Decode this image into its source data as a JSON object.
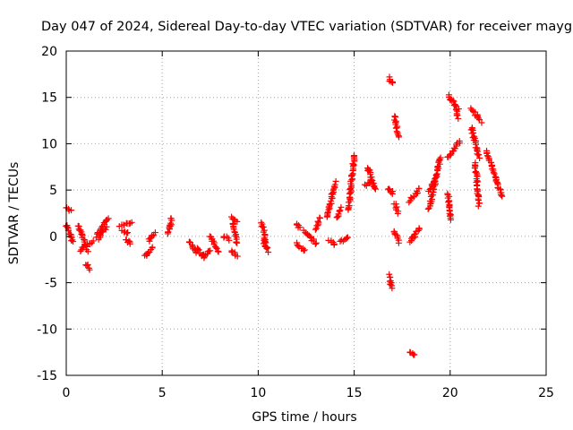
{
  "chart_data": {
    "type": "scatter",
    "title": "Day 047 of 2024, Sidereal Day-to-day VTEC variation (SDTVAR) for receiver mayg",
    "xlabel": "GPS time / hours",
    "ylabel": "SDTVAR / TECUs",
    "xlim": [
      0,
      25
    ],
    "ylim": [
      -15,
      20
    ],
    "xticks": [
      0,
      5,
      10,
      15,
      20,
      25
    ],
    "yticks": [
      -15,
      -10,
      -5,
      0,
      5,
      10,
      15,
      20
    ],
    "grid": true,
    "marker": "+",
    "series": [
      {
        "name": "SDTVAR",
        "color": "#ff0000",
        "segments": [
          {
            "x0": 0.0,
            "x1": 0.25,
            "y0": 3.1,
            "y1": 2.8
          },
          {
            "x0": 0.0,
            "x1": 0.35,
            "y0": 1.2,
            "y1": -0.6
          },
          {
            "x0": 0.65,
            "x1": 1.1,
            "y0": 1.2,
            "y1": -1.5
          },
          {
            "x0": 0.7,
            "x1": 1.4,
            "y0": -1.5,
            "y1": -0.5
          },
          {
            "x0": 1.05,
            "x1": 1.2,
            "y0": -3.0,
            "y1": -3.5
          },
          {
            "x0": 1.6,
            "x1": 2.2,
            "y0": 0.0,
            "y1": 2.0
          },
          {
            "x0": 1.7,
            "x1": 2.1,
            "y0": -0.2,
            "y1": 1.0
          },
          {
            "x0": 2.8,
            "x1": 3.4,
            "y0": 1.2,
            "y1": 1.6
          },
          {
            "x0": 2.9,
            "x1": 3.2,
            "y0": 0.5,
            "y1": 0.4
          },
          {
            "x0": 3.1,
            "x1": 3.35,
            "y0": -0.3,
            "y1": -0.8
          },
          {
            "x0": 4.1,
            "x1": 4.5,
            "y0": -2.2,
            "y1": -1.2
          },
          {
            "x0": 4.3,
            "x1": 4.6,
            "y0": -0.5,
            "y1": 0.3
          },
          {
            "x0": 5.3,
            "x1": 5.5,
            "y0": 0.2,
            "y1": 2.0
          },
          {
            "x0": 6.4,
            "x1": 6.8,
            "y0": -0.5,
            "y1": -1.8
          },
          {
            "x0": 6.8,
            "x1": 7.2,
            "y0": -1.2,
            "y1": -2.4
          },
          {
            "x0": 7.2,
            "x1": 7.5,
            "y0": -2.0,
            "y1": -1.6
          },
          {
            "x0": 7.5,
            "x1": 7.9,
            "y0": 0.0,
            "y1": -1.6
          },
          {
            "x0": 8.2,
            "x1": 8.5,
            "y0": 0.0,
            "y1": -0.3
          },
          {
            "x0": 8.6,
            "x1": 8.9,
            "y0": 2.0,
            "y1": 1.6
          },
          {
            "x0": 8.7,
            "x1": 8.9,
            "y0": 1.5,
            "y1": -0.8
          },
          {
            "x0": 8.6,
            "x1": 8.9,
            "y0": -1.5,
            "y1": -2.2
          },
          {
            "x0": 10.2,
            "x1": 10.4,
            "y0": 1.5,
            "y1": -0.8
          },
          {
            "x0": 10.3,
            "x1": 10.5,
            "y0": -0.5,
            "y1": -1.6
          },
          {
            "x0": 12.0,
            "x1": 12.2,
            "y0": 1.2,
            "y1": 1.0
          },
          {
            "x0": 12.0,
            "x1": 12.4,
            "y0": -0.8,
            "y1": -1.6
          },
          {
            "x0": 12.4,
            "x1": 13.0,
            "y0": 0.6,
            "y1": -0.8
          },
          {
            "x0": 13.0,
            "x1": 13.2,
            "y0": 0.8,
            "y1": 2.0
          },
          {
            "x0": 13.6,
            "x1": 14.0,
            "y0": 2.0,
            "y1": 5.8
          },
          {
            "x0": 13.7,
            "x1": 14.0,
            "y0": -0.4,
            "y1": -0.9
          },
          {
            "x0": 14.1,
            "x1": 14.3,
            "y0": 2.0,
            "y1": 3.0
          },
          {
            "x0": 14.3,
            "x1": 14.7,
            "y0": -0.5,
            "y1": -0.2
          },
          {
            "x0": 14.7,
            "x1": 15.0,
            "y0": 2.8,
            "y1": 8.7
          },
          {
            "x0": 15.7,
            "x1": 16.1,
            "y0": 7.5,
            "y1": 5.0
          },
          {
            "x0": 15.6,
            "x1": 15.9,
            "y0": 5.5,
            "y1": 6.0
          },
          {
            "x0": 16.8,
            "x1": 17.0,
            "y0": 17.1,
            "y1": 16.5
          },
          {
            "x0": 16.8,
            "x1": 17.0,
            "y0": 5.2,
            "y1": 4.6
          },
          {
            "x0": 16.85,
            "x1": 16.95,
            "y0": -4.2,
            "y1": -5.6
          },
          {
            "x0": 17.1,
            "x1": 17.3,
            "y0": 13.0,
            "y1": 10.8
          },
          {
            "x0": 17.1,
            "x1": 17.3,
            "y0": 3.5,
            "y1": 2.6
          },
          {
            "x0": 17.1,
            "x1": 17.3,
            "y0": 0.6,
            "y1": -0.6
          },
          {
            "x0": 17.9,
            "x1": 18.1,
            "y0": -12.4,
            "y1": -12.9
          },
          {
            "x0": 17.9,
            "x1": 18.4,
            "y0": 3.8,
            "y1": 5.2
          },
          {
            "x0": 17.9,
            "x1": 18.4,
            "y0": -0.6,
            "y1": 0.8
          },
          {
            "x0": 18.9,
            "x1": 19.5,
            "y0": 3.0,
            "y1": 8.5
          },
          {
            "x0": 18.9,
            "x1": 19.2,
            "y0": 5.0,
            "y1": 6.2
          },
          {
            "x0": 19.9,
            "x1": 20.0,
            "y0": 4.5,
            "y1": 1.8
          },
          {
            "x0": 19.9,
            "x1": 20.4,
            "y0": 15.2,
            "y1": 13.8
          },
          {
            "x0": 20.3,
            "x1": 20.4,
            "y0": 13.8,
            "y1": 12.8
          },
          {
            "x0": 19.9,
            "x1": 20.5,
            "y0": 8.5,
            "y1": 10.2
          },
          {
            "x0": 21.1,
            "x1": 21.6,
            "y0": 13.8,
            "y1": 12.4
          },
          {
            "x0": 21.1,
            "x1": 21.5,
            "y0": 11.8,
            "y1": 8.5
          },
          {
            "x0": 21.3,
            "x1": 21.5,
            "y0": 8.0,
            "y1": 3.4
          },
          {
            "x0": 21.9,
            "x1": 22.7,
            "y0": 9.2,
            "y1": 4.2
          }
        ]
      }
    ]
  }
}
